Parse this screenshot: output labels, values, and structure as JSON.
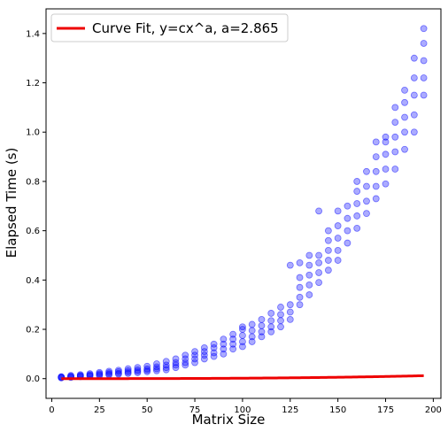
{
  "chart_data": {
    "type": "scatter",
    "xlabel": "Matrix Size",
    "ylabel": "Elapsed Time (s)",
    "xlim": [
      -3,
      204
    ],
    "ylim": [
      -0.08,
      1.5
    ],
    "xticks": [
      "0",
      "25",
      "50",
      "75",
      "100",
      "125",
      "150",
      "175",
      "200"
    ],
    "yticks": [
      "0.0",
      "0.2",
      "0.4",
      "0.6",
      "0.8",
      "1.0",
      "1.2",
      "1.4"
    ],
    "grid": false,
    "legend_position": "top-left",
    "scatter_color": "#0000ff",
    "fit_color": "#ee0000",
    "fit": {
      "label": "Curve Fit, y=cx^a, a=2.865",
      "a": 2.865,
      "c": 3.26e-09
    },
    "x_sizes": [
      5,
      10,
      15,
      20,
      25,
      30,
      35,
      40,
      45,
      50,
      55,
      60,
      65,
      70,
      75,
      80,
      85,
      90,
      95,
      100,
      105,
      110,
      115,
      120,
      125,
      130,
      135,
      140,
      145,
      150,
      155,
      160,
      165,
      170,
      175,
      180,
      185,
      190,
      195
    ],
    "series": [
      {
        "values_by_size": [
          [
            0.003,
            0.005,
            0.006,
            0.008
          ],
          [
            0.005,
            0.007,
            0.01,
            0.013
          ],
          [
            0.008,
            0.01,
            0.013,
            0.016
          ],
          [
            0.01,
            0.013,
            0.016,
            0.02
          ],
          [
            0.012,
            0.016,
            0.02,
            0.025
          ],
          [
            0.015,
            0.019,
            0.024,
            0.03
          ],
          [
            0.018,
            0.022,
            0.028,
            0.034
          ],
          [
            0.021,
            0.026,
            0.032,
            0.04
          ],
          [
            0.024,
            0.03,
            0.036,
            0.045
          ],
          [
            0.028,
            0.034,
            0.04,
            0.05
          ],
          [
            0.032,
            0.04,
            0.048,
            0.06
          ],
          [
            0.036,
            0.045,
            0.055,
            0.07
          ],
          [
            0.045,
            0.055,
            0.065,
            0.08
          ],
          [
            0.055,
            0.065,
            0.08,
            0.095
          ],
          [
            0.065,
            0.08,
            0.095,
            0.11
          ],
          [
            0.08,
            0.095,
            0.11,
            0.125
          ],
          [
            0.09,
            0.105,
            0.125,
            0.14
          ],
          [
            0.1,
            0.12,
            0.14,
            0.16
          ],
          [
            0.12,
            0.14,
            0.16,
            0.18
          ],
          [
            0.13,
            0.15,
            0.175,
            0.2,
            0.21
          ],
          [
            0.15,
            0.17,
            0.195,
            0.22
          ],
          [
            0.17,
            0.19,
            0.215,
            0.24
          ],
          [
            0.19,
            0.21,
            0.235,
            0.265
          ],
          [
            0.21,
            0.235,
            0.26,
            0.29
          ],
          [
            0.24,
            0.27,
            0.3,
            0.46
          ],
          [
            0.3,
            0.33,
            0.37,
            0.41,
            0.47
          ],
          [
            0.34,
            0.38,
            0.42,
            0.46,
            0.5
          ],
          [
            0.39,
            0.43,
            0.47,
            0.5,
            0.68
          ],
          [
            0.44,
            0.48,
            0.52,
            0.56,
            0.6
          ],
          [
            0.48,
            0.52,
            0.57,
            0.62,
            0.68
          ],
          [
            0.55,
            0.6,
            0.65,
            0.7
          ],
          [
            0.61,
            0.66,
            0.71,
            0.76,
            0.8
          ],
          [
            0.67,
            0.72,
            0.78,
            0.84
          ],
          [
            0.73,
            0.78,
            0.84,
            0.9,
            0.96
          ],
          [
            0.79,
            0.85,
            0.91,
            0.96,
            0.98
          ],
          [
            0.85,
            0.92,
            0.98,
            1.04,
            1.1
          ],
          [
            0.93,
            1.0,
            1.06,
            1.12,
            1.17
          ],
          [
            1.0,
            1.07,
            1.15,
            1.22,
            1.3
          ],
          [
            1.15,
            1.22,
            1.29,
            1.36,
            1.42
          ]
        ]
      }
    ]
  }
}
